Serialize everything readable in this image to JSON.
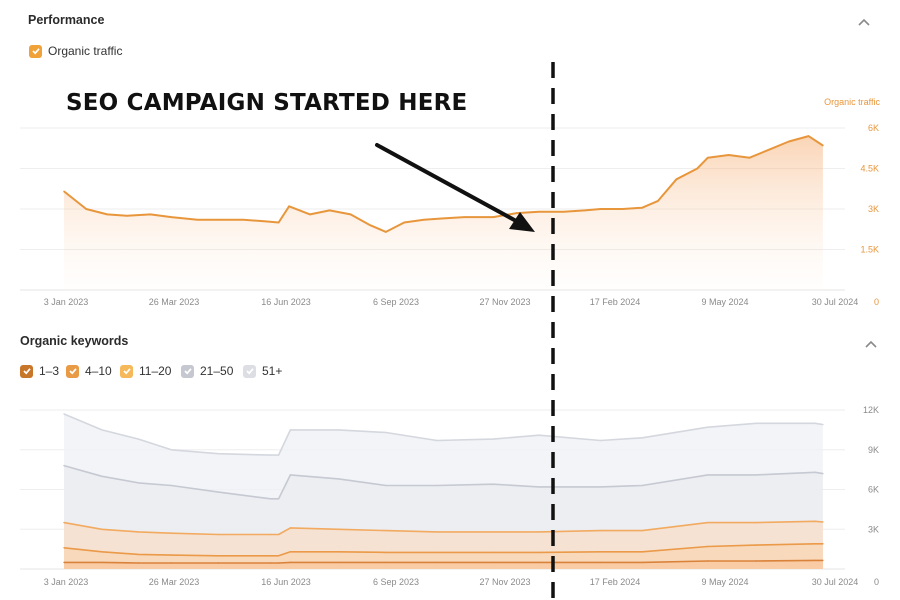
{
  "performance": {
    "title": "Performance",
    "legend": [
      {
        "label": "Organic traffic",
        "color": "#f0a138",
        "checked": true
      }
    ]
  },
  "keywords": {
    "title": "Organic keywords",
    "legend": [
      {
        "label": "1–3",
        "color": "#c8762a",
        "checked": true
      },
      {
        "label": "4–10",
        "color": "#e99a45",
        "checked": true
      },
      {
        "label": "11–20",
        "color": "#f5b85a",
        "checked": true
      },
      {
        "label": "21–50",
        "color": "#c5c8d0",
        "checked": true
      },
      {
        "label": "51+",
        "color": "#dcdee4",
        "checked": true
      }
    ]
  },
  "annotation": {
    "text": "SEO CAMPAIGN STARTED HERE"
  },
  "icons": {
    "collapse": "chevron-up-icon",
    "checkbox": "checkbox-checked-icon"
  },
  "colors": {
    "traffic": "#e8963c",
    "keyword_orange": "#f1a24b",
    "keyword_gray": "#c9ccd4"
  },
  "chart_data": [
    {
      "type": "area",
      "title": "Performance",
      "xlabel": "",
      "ylabel": "Organic traffic",
      "x_ticks": [
        "3 Jan 2023",
        "26 Mar 2023",
        "16 Jun 2023",
        "6 Sep 2023",
        "27 Nov 2023",
        "17 Feb 2024",
        "9 May 2024",
        "30 Jul 2024"
      ],
      "y_ticks": [
        "0",
        "1.5K",
        "3K",
        "4.5K",
        "6K"
      ],
      "y_axis_title": "Organic traffic",
      "ylim": [
        0,
        6000
      ],
      "xlim": [
        "2023-01-03",
        "2024-08-15"
      ],
      "grid": true,
      "series": [
        {
          "name": "Organic traffic",
          "x": [
            "2023-01-03",
            "2023-01-20",
            "2023-02-05",
            "2023-02-20",
            "2023-03-10",
            "2023-03-26",
            "2023-04-15",
            "2023-05-01",
            "2023-05-20",
            "2023-06-05",
            "2023-06-16",
            "2023-06-24",
            "2023-07-10",
            "2023-07-25",
            "2023-08-10",
            "2023-08-25",
            "2023-09-06",
            "2023-09-20",
            "2023-10-05",
            "2023-10-20",
            "2023-11-05",
            "2023-11-27",
            "2023-12-15",
            "2024-01-01",
            "2024-01-20",
            "2024-02-05",
            "2024-02-17",
            "2024-03-05",
            "2024-03-20",
            "2024-04-01",
            "2024-04-15",
            "2024-05-01",
            "2024-05-09",
            "2024-05-25",
            "2024-06-10",
            "2024-06-25",
            "2024-07-10",
            "2024-07-25",
            "2024-08-05"
          ],
          "values": [
            3650,
            3000,
            2800,
            2750,
            2800,
            2700,
            2600,
            2600,
            2600,
            2550,
            2500,
            3100,
            2800,
            2950,
            2800,
            2400,
            2150,
            2500,
            2600,
            2650,
            2700,
            2700,
            2850,
            2900,
            2900,
            2950,
            3000,
            3000,
            3050,
            3300,
            4100,
            4500,
            4900,
            5000,
            4900,
            5200,
            5500,
            5700,
            5350
          ]
        }
      ]
    },
    {
      "type": "area",
      "title": "Organic keywords",
      "stacked": true,
      "x_ticks": [
        "3 Jan 2023",
        "26 Mar 2023",
        "16 Jun 2023",
        "6 Sep 2023",
        "27 Nov 2023",
        "17 Feb 2024",
        "9 May 2024",
        "30 Jul 2024"
      ],
      "y_ticks": [
        "0",
        "3K",
        "6K",
        "9K",
        "12K"
      ],
      "ylim": [
        0,
        12000
      ],
      "xlim": [
        "2023-01-03",
        "2024-08-15"
      ],
      "grid": true,
      "x": [
        "2023-01-03",
        "2023-02-01",
        "2023-03-01",
        "2023-03-26",
        "2023-05-01",
        "2023-06-10",
        "2023-06-16",
        "2023-06-25",
        "2023-08-01",
        "2023-09-06",
        "2023-10-15",
        "2023-11-27",
        "2024-01-01",
        "2024-02-17",
        "2024-03-20",
        "2024-05-09",
        "2024-06-15",
        "2024-07-30",
        "2024-08-05"
      ],
      "series": [
        {
          "name": "1–3",
          "values": [
            500,
            500,
            450,
            450,
            450,
            450,
            450,
            500,
            500,
            500,
            500,
            500,
            500,
            500,
            500,
            600,
            600,
            650,
            650
          ]
        },
        {
          "name": "4–10",
          "values": [
            1600,
            1300,
            1100,
            1050,
            1000,
            1000,
            1000,
            1300,
            1300,
            1250,
            1250,
            1250,
            1250,
            1300,
            1300,
            1700,
            1800,
            1900,
            1900
          ]
        },
        {
          "name": "11–20",
          "values": [
            3500,
            3000,
            2800,
            2700,
            2600,
            2600,
            2600,
            3100,
            3000,
            2900,
            2800,
            2800,
            2800,
            2900,
            2900,
            3500,
            3500,
            3600,
            3550
          ]
        },
        {
          "name": "21–50",
          "values": [
            7800,
            7000,
            6500,
            6300,
            5800,
            5300,
            5300,
            7100,
            6800,
            6300,
            6300,
            6400,
            6200,
            6200,
            6300,
            7100,
            7100,
            7300,
            7200
          ]
        },
        {
          "name": "51+",
          "values": [
            11700,
            10500,
            9800,
            9000,
            8700,
            8600,
            8600,
            10500,
            10500,
            10300,
            9700,
            9800,
            10100,
            9700,
            9900,
            10700,
            11000,
            11000,
            10900
          ]
        }
      ]
    }
  ]
}
